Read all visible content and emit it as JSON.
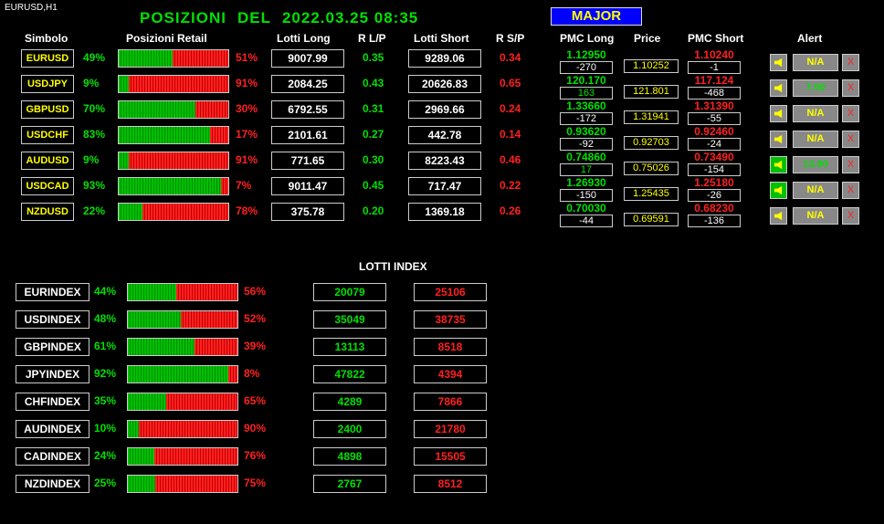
{
  "window_label": "EURUSD,H1",
  "title": {
    "prefix": "POSIZIONI",
    "del": "DEL",
    "datetime": "2022.03.25 08:35"
  },
  "major_button": "MAJOR",
  "headers": {
    "simbolo": "Simbolo",
    "posizioni": "Posizioni Retail",
    "lotti_long": "Lotti Long",
    "rlp": "R L/P",
    "lotti_short": "Lotti Short",
    "rsp": "R S/P",
    "pmc_long": "PMC Long",
    "price": "Price",
    "pmc_short": "PMC Short",
    "alert": "Alert"
  },
  "colors": {
    "green": "#00e000",
    "red": "#ff2020",
    "yellow": "#ffff00",
    "blue": "#0000ff"
  },
  "pairs": [
    {
      "symbol": "EURUSD",
      "long_pct": "49%",
      "short_pct": "51%",
      "long_frac": 0.49,
      "lotti_long": "9007.99",
      "rlp": "0.35",
      "lotti_short": "9289.06",
      "rsp": "0.34",
      "pmc_long": "1.12950",
      "pmc_long_diff": "-270",
      "pmc_long_diff_color": "white",
      "price": "1.10252",
      "pmc_short": "1.10240",
      "pmc_short_diff": "-1",
      "alert_val": "N/A",
      "alert_color": "yellow",
      "alert_on": false,
      "close": "X"
    },
    {
      "symbol": "USDJPY",
      "long_pct": "9%",
      "short_pct": "91%",
      "long_frac": 0.09,
      "lotti_long": "2084.25",
      "rlp": "0.43",
      "lotti_short": "20626.83",
      "rsp": "0.65",
      "pmc_long": "120.170",
      "pmc_long_diff": "163",
      "pmc_long_diff_color": "green",
      "price": "121.801",
      "pmc_short": "117.124",
      "pmc_short_diff": "-468",
      "alert_val": "7.00",
      "alert_color": "green",
      "alert_on": false,
      "close": "X"
    },
    {
      "symbol": "GBPUSD",
      "long_pct": "70%",
      "short_pct": "30%",
      "long_frac": 0.7,
      "lotti_long": "6792.55",
      "rlp": "0.31",
      "lotti_short": "2969.66",
      "rsp": "0.24",
      "pmc_long": "1.33660",
      "pmc_long_diff": "-172",
      "pmc_long_diff_color": "white",
      "price": "1.31941",
      "pmc_short": "1.31390",
      "pmc_short_diff": "-55",
      "alert_val": "N/A",
      "alert_color": "yellow",
      "alert_on": false,
      "close": "X"
    },
    {
      "symbol": "USDCHF",
      "long_pct": "83%",
      "short_pct": "17%",
      "long_frac": 0.83,
      "lotti_long": "2101.61",
      "rlp": "0.27",
      "lotti_short": "442.78",
      "rsp": "0.14",
      "pmc_long": "0.93620",
      "pmc_long_diff": "-92",
      "pmc_long_diff_color": "white",
      "price": "0.92703",
      "pmc_short": "0.92460",
      "pmc_short_diff": "-24",
      "alert_val": "N/A",
      "alert_color": "yellow",
      "alert_on": false,
      "close": "X"
    },
    {
      "symbol": "AUDUSD",
      "long_pct": "9%",
      "short_pct": "91%",
      "long_frac": 0.09,
      "lotti_long": "771.65",
      "rlp": "0.30",
      "lotti_short": "8223.43",
      "rsp": "0.46",
      "pmc_long": "0.74860",
      "pmc_long_diff": "17",
      "pmc_long_diff_color": "green",
      "price": "0.75026",
      "pmc_short": "0.73490",
      "pmc_short_diff": "-154",
      "alert_val": "13.00",
      "alert_color": "green",
      "alert_on": true,
      "close": "X"
    },
    {
      "symbol": "USDCAD",
      "long_pct": "93%",
      "short_pct": "7%",
      "long_frac": 0.93,
      "lotti_long": "9011.47",
      "rlp": "0.45",
      "lotti_short": "717.47",
      "rsp": "0.22",
      "pmc_long": "1.26930",
      "pmc_long_diff": "-150",
      "pmc_long_diff_color": "white",
      "price": "1.25435",
      "pmc_short": "1.25180",
      "pmc_short_diff": "-26",
      "alert_val": "N/A",
      "alert_color": "yellow",
      "alert_on": true,
      "close": "X"
    },
    {
      "symbol": "NZDUSD",
      "long_pct": "22%",
      "short_pct": "78%",
      "long_frac": 0.22,
      "lotti_long": "375.78",
      "rlp": "0.20",
      "lotti_short": "1369.18",
      "rsp": "0.26",
      "pmc_long": "0.70030",
      "pmc_long_diff": "-44",
      "pmc_long_diff_color": "white",
      "price": "0.69591",
      "pmc_short": "0.68230",
      "pmc_short_diff": "-136",
      "alert_val": "N/A",
      "alert_color": "yellow",
      "alert_on": false,
      "close": "X"
    }
  ],
  "lotti_index_title": "LOTTI INDEX",
  "indices": [
    {
      "name": "EURINDEX",
      "long_pct": "44%",
      "short_pct": "56%",
      "long_frac": 0.44,
      "long_lots": "20079",
      "short_lots": "25106"
    },
    {
      "name": "USDINDEX",
      "long_pct": "48%",
      "short_pct": "52%",
      "long_frac": 0.48,
      "long_lots": "35049",
      "short_lots": "38735"
    },
    {
      "name": "GBPINDEX",
      "long_pct": "61%",
      "short_pct": "39%",
      "long_frac": 0.61,
      "long_lots": "13113",
      "short_lots": "8518"
    },
    {
      "name": "JPYINDEX",
      "long_pct": "92%",
      "short_pct": "8%",
      "long_frac": 0.92,
      "long_lots": "47822",
      "short_lots": "4394"
    },
    {
      "name": "CHFINDEX",
      "long_pct": "35%",
      "short_pct": "65%",
      "long_frac": 0.35,
      "long_lots": "4289",
      "short_lots": "7866"
    },
    {
      "name": "AUDINDEX",
      "long_pct": "10%",
      "short_pct": "90%",
      "long_frac": 0.1,
      "long_lots": "2400",
      "short_lots": "21780"
    },
    {
      "name": "CADINDEX",
      "long_pct": "24%",
      "short_pct": "76%",
      "long_frac": 0.24,
      "long_lots": "4898",
      "short_lots": "15505"
    },
    {
      "name": "NZDINDEX",
      "long_pct": "25%",
      "short_pct": "75%",
      "long_frac": 0.25,
      "long_lots": "2767",
      "short_lots": "8512"
    }
  ]
}
